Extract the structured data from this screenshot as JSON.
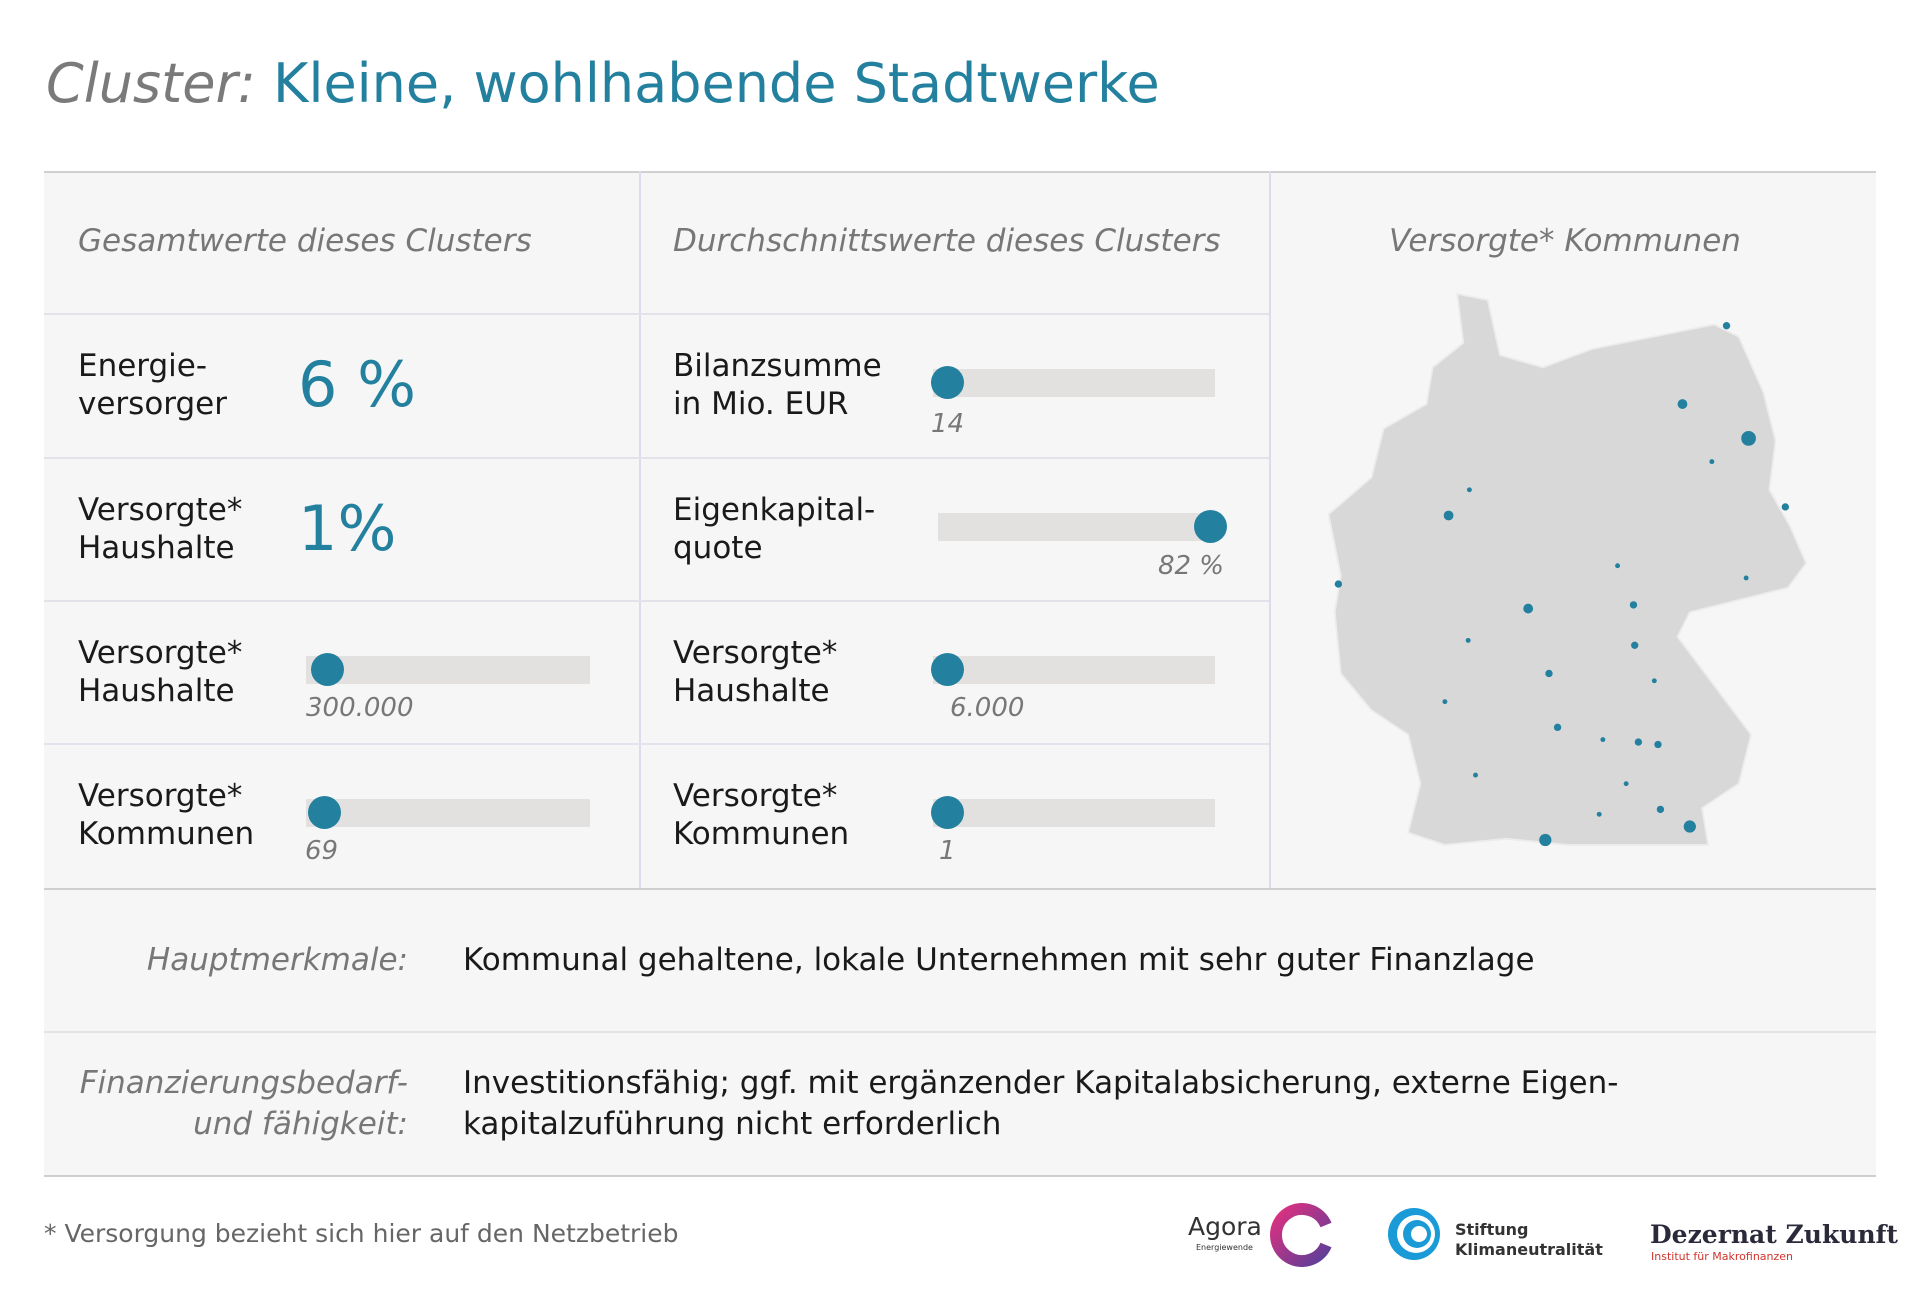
{
  "title": {
    "prefix": "Cluster:",
    "main": "Kleine, wohlhabende Stadtwerke"
  },
  "total": {
    "header": "Gesamtwerte dieses Clusters",
    "rows": [
      {
        "label": [
          "Energie-",
          "versorger"
        ],
        "value": "6 %"
      },
      {
        "label": [
          "Versorgte*",
          "Haushalte"
        ],
        "value": "1%"
      },
      {
        "label": [
          "Versorgte*",
          "Haushalte"
        ],
        "value": "300.000"
      },
      {
        "label": [
          "Versorgte*",
          "Kommunen"
        ],
        "value": "69"
      }
    ]
  },
  "average": {
    "header": "Durchschnittswerte dieses Clusters",
    "rows": [
      {
        "label": [
          "Bilanzsumme",
          "in Mio. EUR"
        ],
        "value": "14"
      },
      {
        "label": [
          "Eigenkapital-",
          "quote"
        ],
        "value": "82 %"
      },
      {
        "label": [
          "Versorgte*",
          "Haushalte"
        ],
        "value": "6.000"
      },
      {
        "label": [
          "Versorgte*",
          "Kommunen"
        ],
        "value": "1"
      }
    ]
  },
  "map": {
    "header": "Versorgte* Kommunen"
  },
  "features": [
    {
      "label": [
        "Hauptmerkmale:"
      ],
      "text": [
        "Kommunal gehaltene, lokale Unternehmen mit sehr guter Finanzlage"
      ]
    },
    {
      "label": [
        "Finanzierungsbedarf-",
        "und fähigkeit:"
      ],
      "text": [
        "Investitionsfähig; ggf. mit ergänzender Kapitalabsicherung, externe Eigen-",
        "kapitalzuführung nicht erforderlich"
      ]
    }
  ],
  "footnote": "* Versorgung bezieht sich hier auf den Netzbetrieb",
  "logos": {
    "agora": [
      "Agora",
      "Energiewende"
    ],
    "stiftung": [
      "Stiftung",
      "Klimaneutralität"
    ],
    "dezernat": [
      "Dezernat",
      "Zukunft",
      "Institut für Makrofinanzen"
    ]
  }
}
